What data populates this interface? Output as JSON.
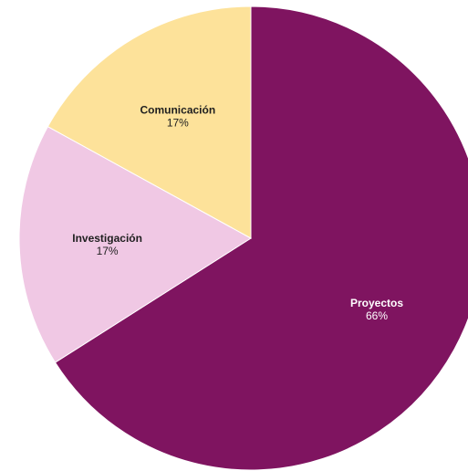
{
  "chart_data": {
    "type": "pie",
    "title": "",
    "start_angle_deg": 0,
    "direction": "clockwise",
    "slices": [
      {
        "label": "Proyectos",
        "value": 66,
        "percent_label": "66%",
        "color": "#7f1460",
        "text_color": "#ffffff"
      },
      {
        "label": "Investigación",
        "value": 17,
        "percent_label": "17%",
        "color": "#f0c8e4",
        "text_color": "#1f1f1f"
      },
      {
        "label": "Comunicación",
        "value": 17,
        "percent_label": "17%",
        "color": "#fde29a",
        "text_color": "#1f1f1f"
      }
    ]
  }
}
